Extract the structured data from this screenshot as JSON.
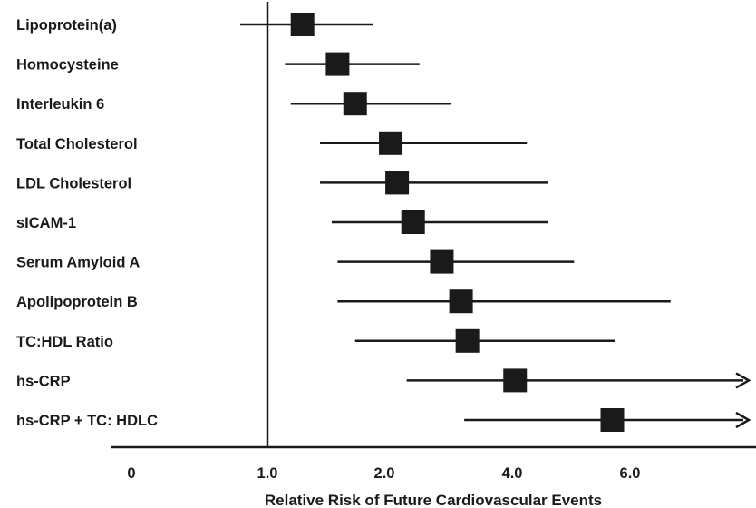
{
  "chart_data": {
    "type": "forest",
    "xlabel": "Relative Risk of Future Cardiovascular Events",
    "xlim": [
      0,
      7.9
    ],
    "reference_line": 1.0,
    "x_ticks": [
      {
        "value": 0,
        "label": "0"
      },
      {
        "value": 1.0,
        "label": "1.0"
      },
      {
        "value": 2.0,
        "label": "2.0"
      },
      {
        "value": 4.0,
        "label": "4.0"
      },
      {
        "value": 6.0,
        "label": "6.0"
      }
    ],
    "rows": [
      {
        "label": "Lipoprotein(a)",
        "estimate": 1.3,
        "ci_low": 0.8,
        "ci_high": 1.9,
        "open_ended": false
      },
      {
        "label": "Homocysteine",
        "estimate": 1.6,
        "ci_low": 1.15,
        "ci_high": 2.55,
        "open_ended": false
      },
      {
        "label": "Interleukin 6",
        "estimate": 1.75,
        "ci_low": 1.2,
        "ci_high": 3.05,
        "open_ended": false
      },
      {
        "label": "Total Cholesterol",
        "estimate": 2.1,
        "ci_low": 1.45,
        "ci_high": 4.25,
        "open_ended": false
      },
      {
        "label": "LDL Cholesterol",
        "estimate": 2.2,
        "ci_low": 1.45,
        "ci_high": 4.6,
        "open_ended": false
      },
      {
        "label": "sICAM-1",
        "estimate": 2.45,
        "ci_low": 1.55,
        "ci_high": 4.6,
        "open_ended": false
      },
      {
        "label": "Serum Amyloid A",
        "estimate": 2.9,
        "ci_low": 1.6,
        "ci_high": 5.05,
        "open_ended": false
      },
      {
        "label": "Apolipoprotein B",
        "estimate": 3.2,
        "ci_low": 1.6,
        "ci_high": 6.65,
        "open_ended": false
      },
      {
        "label": "TC:HDL Ratio",
        "estimate": 3.3,
        "ci_low": 1.75,
        "ci_high": 5.75,
        "open_ended": false
      },
      {
        "label": "hs-CRP",
        "estimate": 4.05,
        "ci_low": 2.35,
        "ci_high": 7.9,
        "open_ended": true
      },
      {
        "label": "hs-CRP + TC: HDLC",
        "estimate": 5.7,
        "ci_low": 3.25,
        "ci_high": 7.9,
        "open_ended": true
      }
    ]
  }
}
